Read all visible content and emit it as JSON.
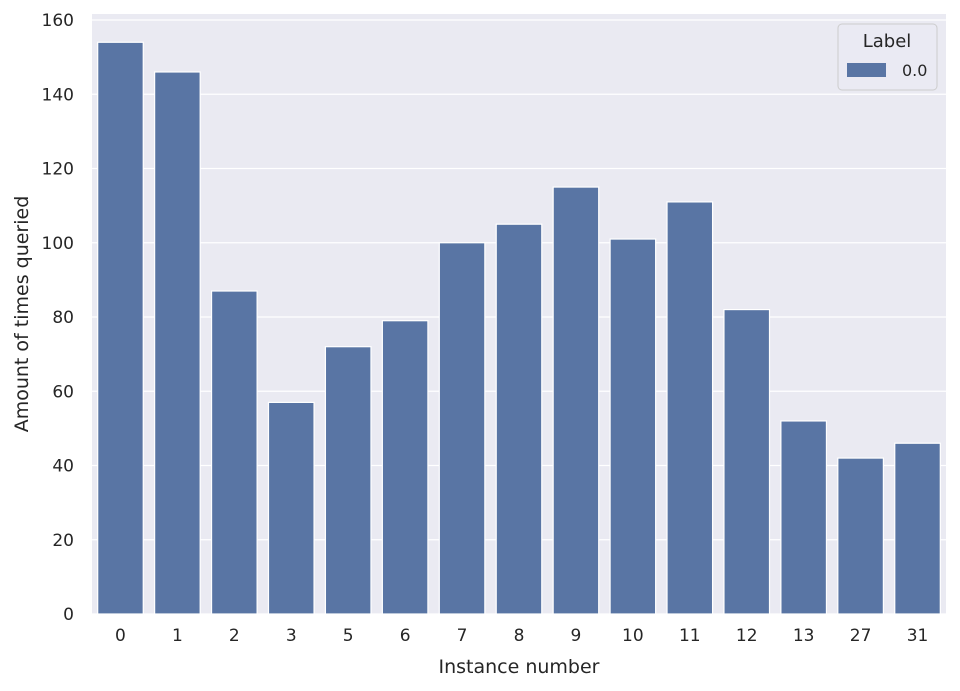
{
  "chart_data": {
    "type": "bar",
    "title": "",
    "xlabel": "Instance number",
    "ylabel": "Amount of times queried",
    "categories": [
      "0",
      "1",
      "2",
      "3",
      "5",
      "6",
      "7",
      "8",
      "9",
      "10",
      "11",
      "12",
      "13",
      "27",
      "31"
    ],
    "series": [
      {
        "name": "0.0",
        "values": [
          154,
          146,
          87,
          57,
          72,
          79,
          100,
          105,
          115,
          101,
          111,
          82,
          52,
          42,
          46
        ]
      }
    ],
    "ylim": [
      0,
      160
    ],
    "yticks": [
      0,
      20,
      40,
      60,
      80,
      100,
      120,
      140,
      160
    ],
    "grid": true,
    "legend": {
      "title": "Label",
      "placement": "top-right"
    },
    "colors": {
      "bar": "#5975a4",
      "plot_background": "#eaeaf2",
      "gridline": "#ffffff"
    }
  }
}
